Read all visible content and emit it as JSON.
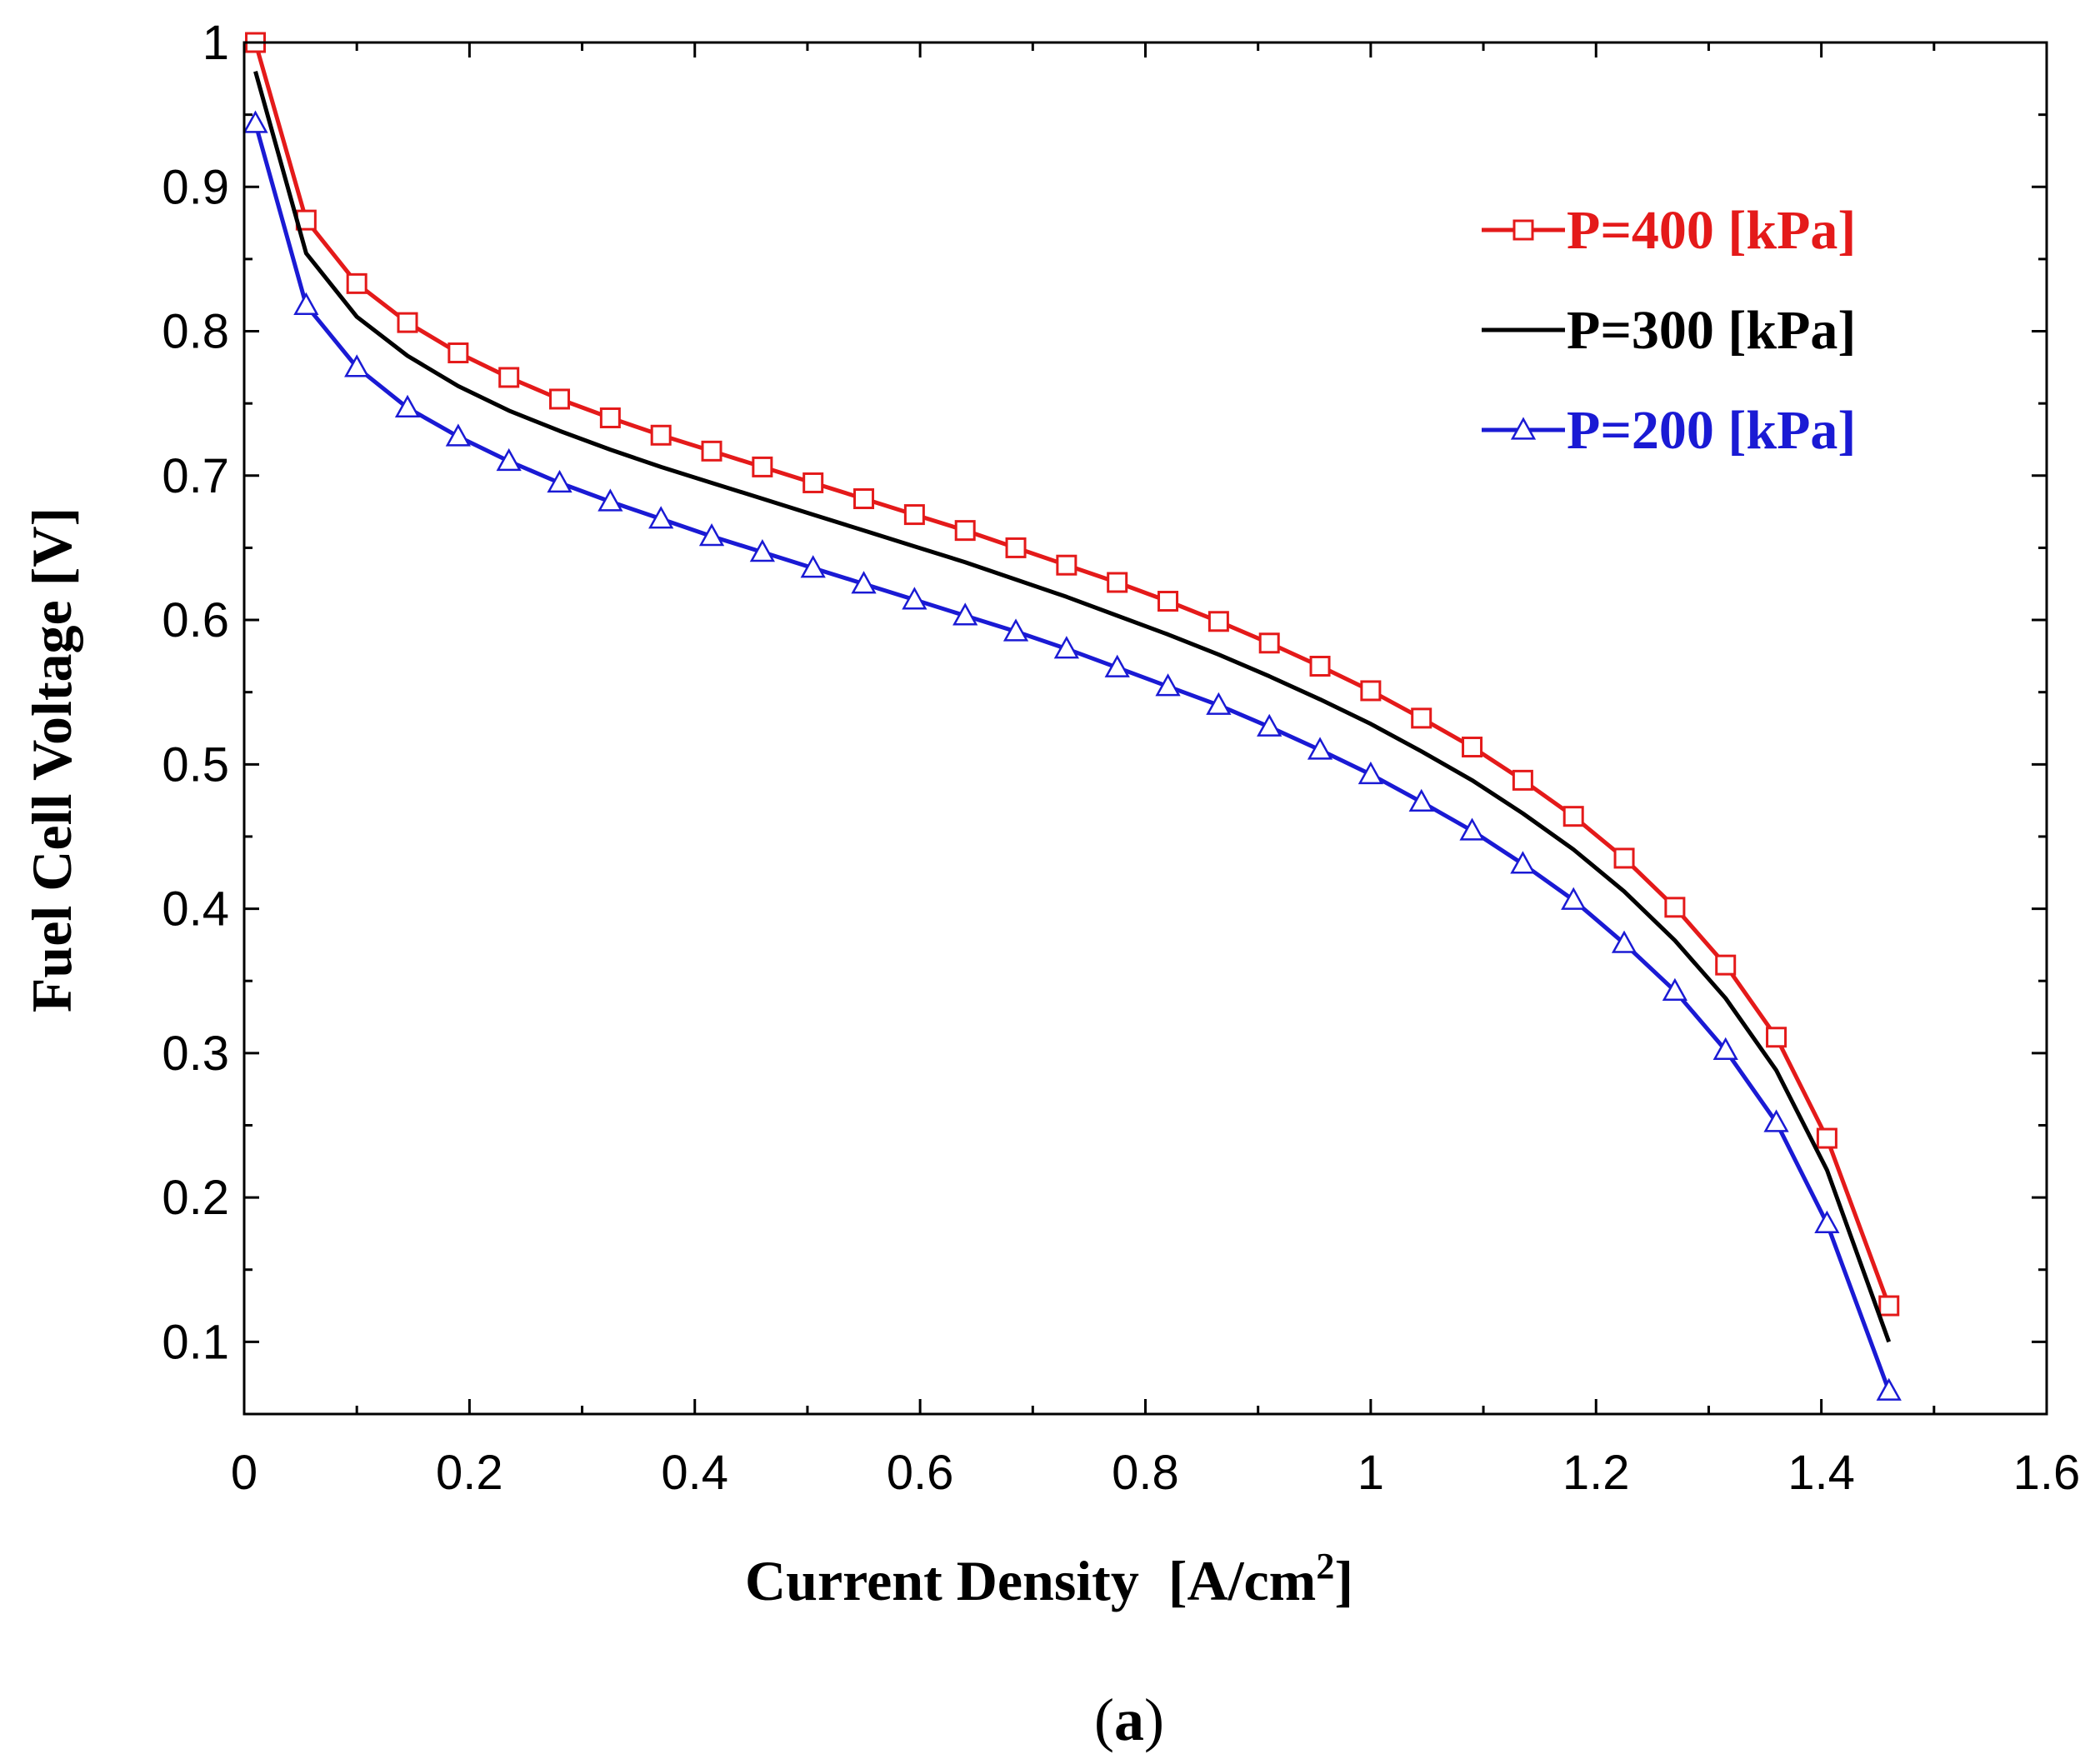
{
  "chart_data": {
    "type": "line",
    "title": "",
    "xlabel": "Current Density",
    "xlabel_unit": "[A/cm",
    "xlabel_unit_sup": "2",
    "xlabel_unit_close": "]",
    "ylabel": "Fuel Cell Voltage [V]",
    "xlim": [
      0,
      1.6
    ],
    "ylim": [
      0.05,
      1.0
    ],
    "xticks": [
      0,
      0.2,
      0.4,
      0.6,
      0.8,
      1.0,
      1.2,
      1.4,
      1.6
    ],
    "xtick_labels": [
      "0",
      "0.2",
      "0.4",
      "0.6",
      "0.8",
      "1",
      "1.2",
      "1.4",
      "1.6"
    ],
    "yticks": [
      0.1,
      0.2,
      0.3,
      0.4,
      0.5,
      0.6,
      0.7,
      0.8,
      0.9,
      1.0
    ],
    "ytick_labels": [
      "0.1",
      "0.2",
      "0.3",
      "0.4",
      "0.5",
      "0.6",
      "0.7",
      "0.8",
      "0.9",
      "1"
    ],
    "grid": false,
    "legend_position": "top-right",
    "caption_open": "(",
    "caption_letter": "a",
    "caption_close": ")",
    "x": [
      0.01,
      0.055,
      0.1,
      0.145,
      0.19,
      0.235,
      0.28,
      0.325,
      0.37,
      0.415,
      0.46,
      0.505,
      0.55,
      0.595,
      0.64,
      0.685,
      0.73,
      0.775,
      0.82,
      0.865,
      0.91,
      0.955,
      1.0,
      1.045,
      1.09,
      1.135,
      1.18,
      1.225,
      1.27,
      1.315,
      1.36,
      1.405,
      1.46
    ],
    "series": [
      {
        "name": "P=400 [kPa]",
        "color": "#e41a1a",
        "marker": "square",
        "values": [
          1.0,
          0.877,
          0.833,
          0.806,
          0.785,
          0.768,
          0.753,
          0.74,
          0.728,
          0.717,
          0.706,
          0.695,
          0.684,
          0.673,
          0.662,
          0.65,
          0.638,
          0.626,
          0.613,
          0.599,
          0.584,
          0.568,
          0.551,
          0.532,
          0.512,
          0.489,
          0.464,
          0.435,
          0.401,
          0.361,
          0.311,
          0.241,
          0.125
        ]
      },
      {
        "name": "P=300 [kPa]",
        "color": "#000000",
        "marker": "none",
        "values": [
          0.98,
          0.854,
          0.81,
          0.783,
          0.762,
          0.745,
          0.731,
          0.718,
          0.706,
          0.695,
          0.684,
          0.673,
          0.662,
          0.651,
          0.64,
          0.628,
          0.616,
          0.603,
          0.59,
          0.576,
          0.561,
          0.545,
          0.528,
          0.509,
          0.489,
          0.466,
          0.441,
          0.412,
          0.378,
          0.338,
          0.288,
          0.219,
          0.1
        ]
      },
      {
        "name": "P=200 [kPa]",
        "color": "#1a1ad4",
        "marker": "triangle",
        "values": [
          0.944,
          0.818,
          0.775,
          0.747,
          0.727,
          0.71,
          0.695,
          0.682,
          0.67,
          0.658,
          0.647,
          0.636,
          0.625,
          0.614,
          0.603,
          0.592,
          0.58,
          0.567,
          0.554,
          0.541,
          0.526,
          0.51,
          0.493,
          0.474,
          0.454,
          0.431,
          0.406,
          0.376,
          0.343,
          0.302,
          0.252,
          0.182,
          0.066
        ]
      }
    ]
  }
}
